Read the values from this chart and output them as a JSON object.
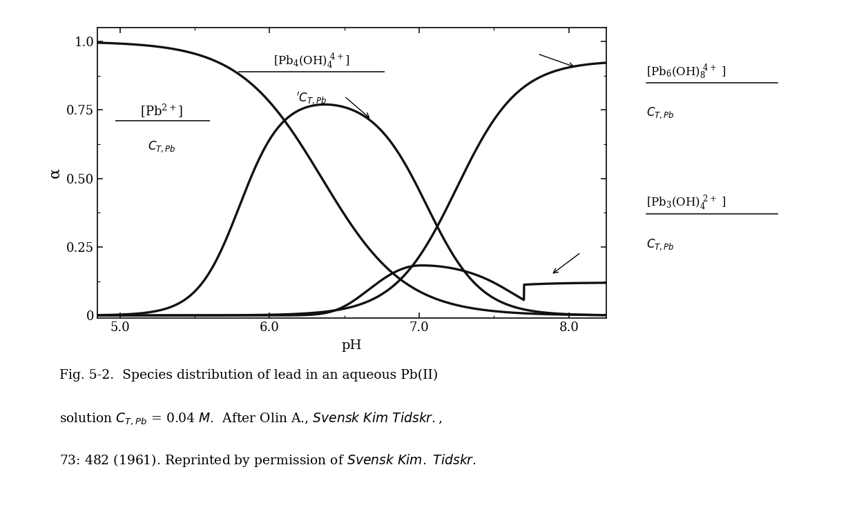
{
  "ph_min": 4.85,
  "ph_max": 8.25,
  "ylim": [
    -0.01,
    1.05
  ],
  "yticks": [
    0,
    0.25,
    0.5,
    0.75,
    1.0
  ],
  "ytick_labels": [
    "0",
    "0.25",
    "0.50",
    "0.75",
    "1.0"
  ],
  "xticks": [
    5.0,
    6.0,
    7.0,
    8.0
  ],
  "xtick_labels": [
    "5.0",
    "6.0",
    "7.0",
    "8.0"
  ],
  "xlabel": "pH",
  "ylabel": "α",
  "line_color": "#111111",
  "line_width": 2.4,
  "bg_color": "#ffffff"
}
